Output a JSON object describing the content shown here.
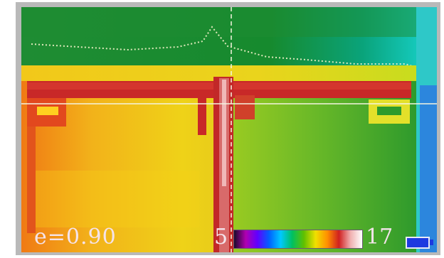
{
  "overlay": {
    "emissivity_text": "e=0.90",
    "scale_min": "5",
    "scale_max": "17"
  },
  "palette_colors": [
    "#1a0a2a",
    "#b000b0",
    "#6000ff",
    "#0060ff",
    "#00c8ff",
    "#00c060",
    "#60c000",
    "#f0e000",
    "#ff9000",
    "#d02020",
    "#f0b0b0",
    "#ffffff"
  ],
  "icons": {
    "battery": "battery-icon",
    "crosshair": "crosshair-icon"
  }
}
